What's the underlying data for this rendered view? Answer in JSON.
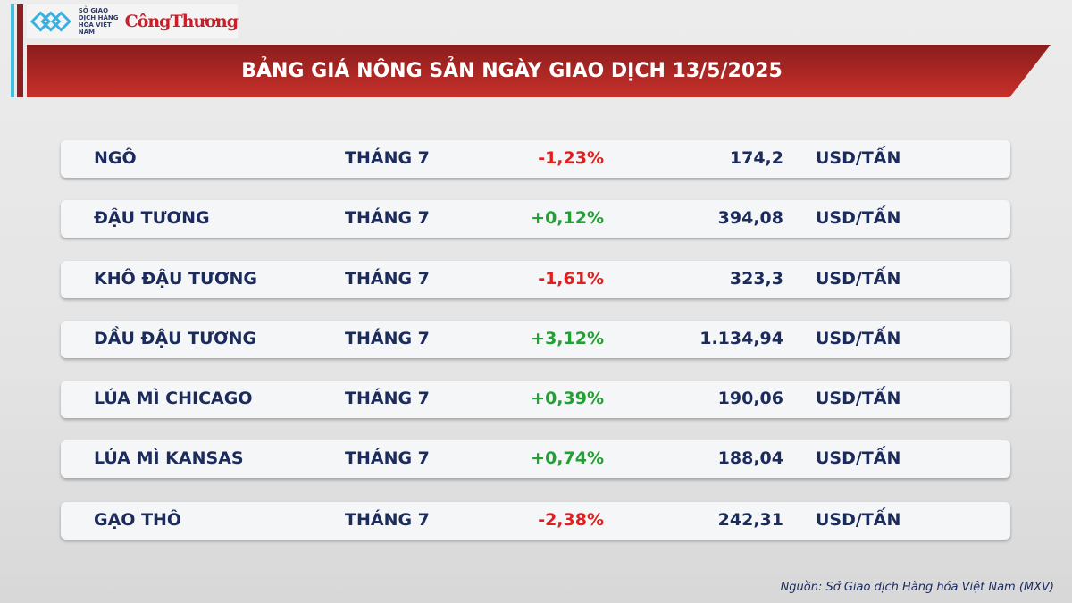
{
  "logo": {
    "org": "SỞ GIAO DỊCH HÀNG HÓA VIỆT NAM",
    "brand": "CôngThương"
  },
  "title": "BẢNG GIÁ NÔNG SẢN NGÀY GIAO DỊCH 13/5/2025",
  "colors": {
    "up": "#22a033",
    "down": "#e0201e",
    "banner": "#b52a26"
  },
  "rows": [
    {
      "name": "NGÔ",
      "month": "THÁNG 7",
      "change": "-1,23%",
      "price": "174,2",
      "unit": "USD/TẤN"
    },
    {
      "name": "ĐẬU TƯƠNG",
      "month": "THÁNG 7",
      "change": "+0,12%",
      "price": "394,08",
      "unit": "USD/TẤN"
    },
    {
      "name": "KHÔ ĐẬU TƯƠNG",
      "month": "THÁNG 7",
      "change": "-1,61%",
      "price": "323,3",
      "unit": "USD/TẤN"
    },
    {
      "name": "DẦU ĐẬU TƯƠNG",
      "month": "THÁNG 7",
      "change": "+3,12%",
      "price": "1.134,94",
      "unit": "USD/TẤN"
    },
    {
      "name": "LÚA MÌ CHICAGO",
      "month": "THÁNG 7",
      "change": "+0,39%",
      "price": "190,06",
      "unit": "USD/TẤN"
    },
    {
      "name": "LÚA MÌ KANSAS",
      "month": "THÁNG 7",
      "change": "+0,74%",
      "price": "188,04",
      "unit": "USD/TẤN"
    },
    {
      "name": "GẠO THÔ",
      "month": "THÁNG 7",
      "change": "-2,38%",
      "price": "242,31",
      "unit": "USD/TẤN"
    }
  ],
  "source": "Nguồn: Sở Giao dịch Hàng hóa Việt Nam (MXV)"
}
